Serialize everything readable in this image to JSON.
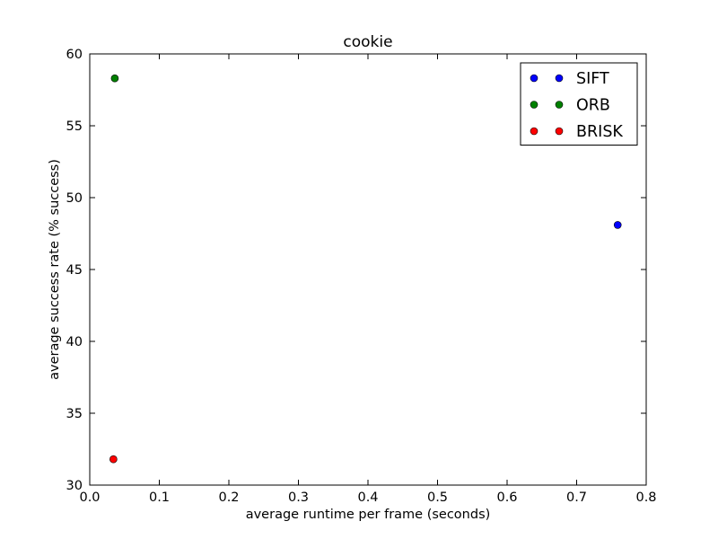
{
  "chart_data": {
    "type": "scatter",
    "title": "cookie",
    "xlabel": "average runtime per frame (seconds)",
    "ylabel": "average success rate (% success)",
    "xlim": [
      0.0,
      0.8
    ],
    "ylim": [
      30,
      60
    ],
    "xticks": [
      "0.0",
      "0.1",
      "0.2",
      "0.3",
      "0.4",
      "0.5",
      "0.6",
      "0.7",
      "0.8"
    ],
    "yticks": [
      "30",
      "35",
      "40",
      "45",
      "50",
      "55",
      "60"
    ],
    "grid": false,
    "legend_position": "top-right",
    "series": [
      {
        "name": "SIFT",
        "color": "#0000ff",
        "points": [
          {
            "x": 0.759,
            "y": 48.1
          }
        ]
      },
      {
        "name": "ORB",
        "color": "#008000",
        "points": [
          {
            "x": 0.036,
            "y": 58.3
          }
        ]
      },
      {
        "name": "BRISK",
        "color": "#ff0000",
        "points": [
          {
            "x": 0.034,
            "y": 31.8
          }
        ]
      }
    ]
  }
}
